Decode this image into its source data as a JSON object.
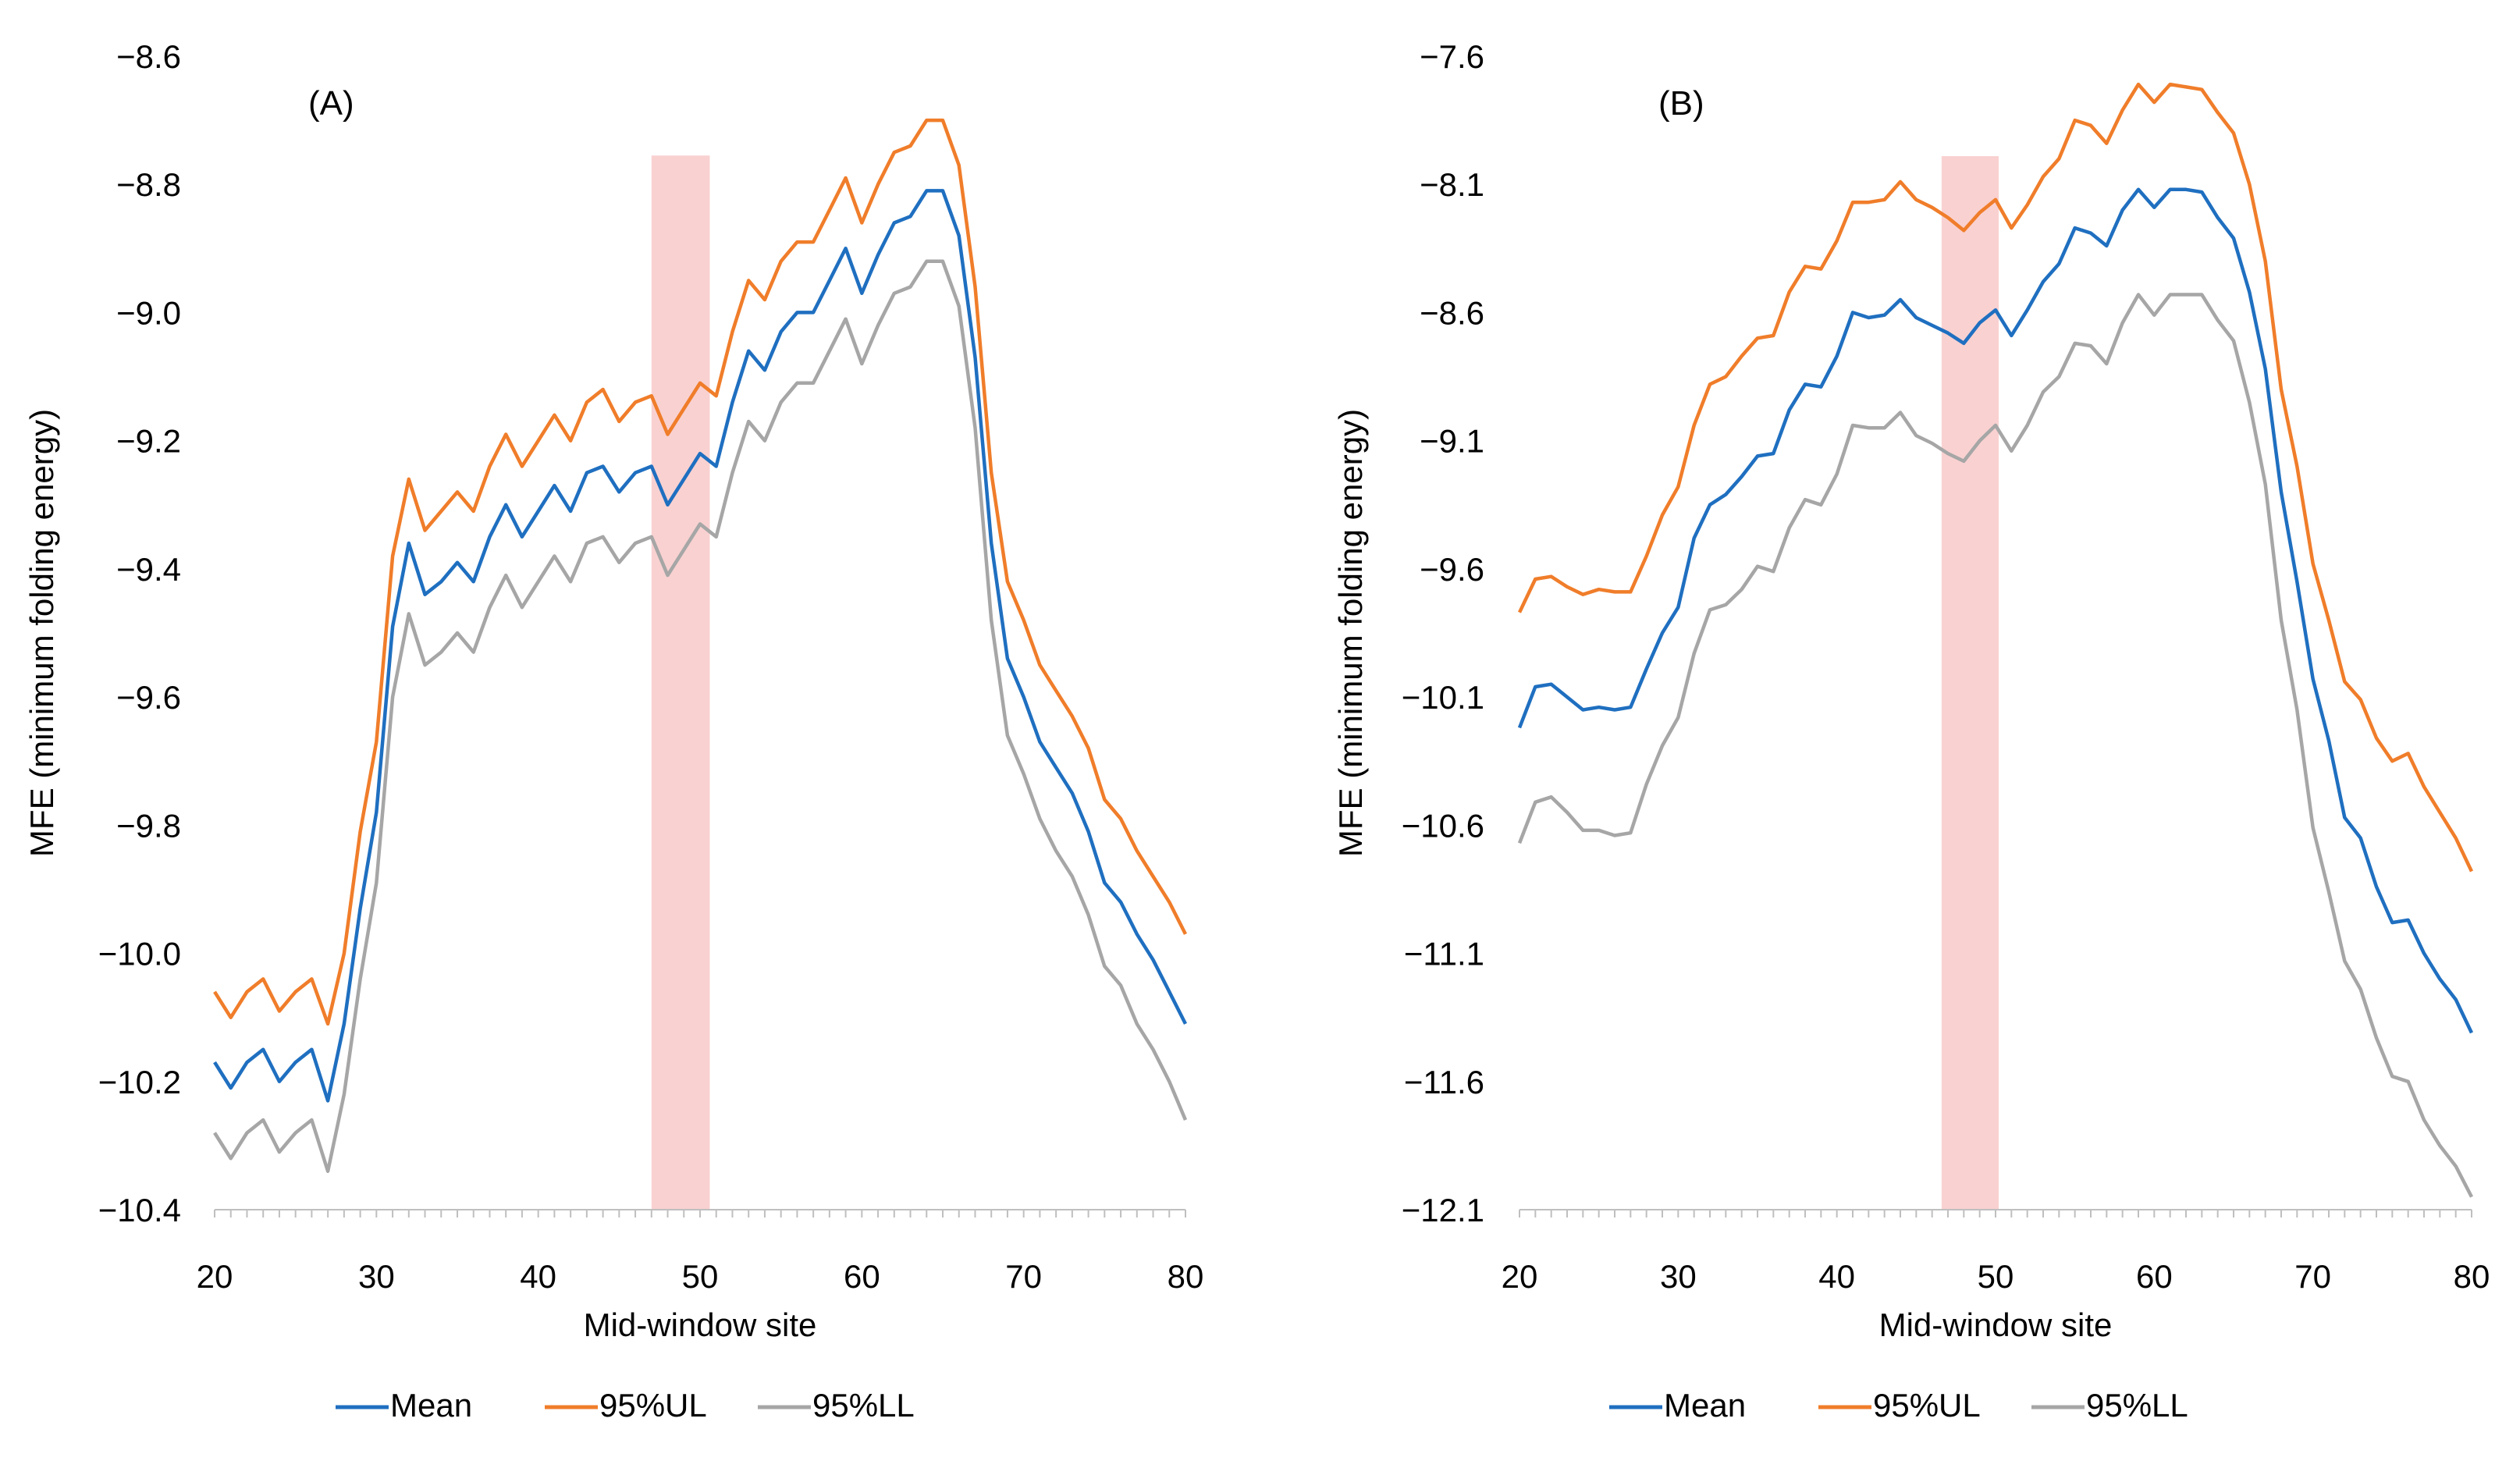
{
  "chart_data": [
    {
      "type": "line",
      "title": "(A)",
      "xlabel": "Mid-window site",
      "ylabel": "MFE (minimum folding energy)",
      "xlim": [
        20,
        80
      ],
      "ylim": [
        -10.4,
        -8.6
      ],
      "xticks": [
        "20",
        "30",
        "40",
        "50",
        "60",
        "70",
        "80"
      ],
      "yticks": [
        "−8.6",
        "−8.8",
        "−9.0",
        "−9.2",
        "−9.4",
        "−9.6",
        "−9.8",
        "−10.0",
        "−10.2",
        "−10.4"
      ],
      "highlight": {
        "x_start": 47,
        "x_end": 50.6,
        "y_top": -8.755,
        "color": "#f4a3a3"
      },
      "x": [
        20,
        21,
        22,
        23,
        24,
        25,
        26,
        27,
        28,
        29,
        30,
        31,
        32,
        33,
        34,
        35,
        36,
        37,
        38,
        39,
        40,
        41,
        42,
        43,
        44,
        45,
        46,
        47,
        48,
        49,
        50,
        51,
        52,
        53,
        54,
        55,
        56,
        57,
        58,
        59,
        60,
        61,
        62,
        63,
        64,
        65,
        66,
        67,
        68,
        69,
        70,
        71,
        72,
        73,
        74,
        75,
        76,
        77,
        78,
        79,
        80
      ],
      "series": [
        {
          "name": "Mean",
          "color": "#1f6fc0",
          "values": [
            -10.17,
            -10.21,
            -10.17,
            -10.15,
            -10.2,
            -10.17,
            -10.15,
            -10.23,
            -10.11,
            -9.93,
            -9.78,
            -9.49,
            -9.36,
            -9.44,
            -9.42,
            -9.39,
            -9.42,
            -9.35,
            -9.3,
            -9.35,
            -9.31,
            -9.27,
            -9.31,
            -9.25,
            -9.24,
            -9.28,
            -9.25,
            -9.24,
            -9.3,
            -9.26,
            -9.22,
            -9.24,
            -9.14,
            -9.06,
            -9.09,
            -9.03,
            -9.0,
            -9.0,
            -8.95,
            -8.9,
            -8.97,
            -8.91,
            -8.86,
            -8.85,
            -8.81,
            -8.81,
            -8.88,
            -9.07,
            -9.36,
            -9.54,
            -9.6,
            -9.67,
            -9.71,
            -9.75,
            -9.81,
            -9.89,
            -9.92,
            -9.97,
            -10.01,
            -10.06,
            -10.11
          ]
        },
        {
          "name": "95%UL",
          "color": "#f07d2a",
          "values": [
            -10.06,
            -10.1,
            -10.06,
            -10.04,
            -10.09,
            -10.06,
            -10.04,
            -10.11,
            -10.0,
            -9.81,
            -9.67,
            -9.38,
            -9.26,
            -9.34,
            -9.31,
            -9.28,
            -9.31,
            -9.24,
            -9.19,
            -9.24,
            -9.2,
            -9.16,
            -9.2,
            -9.14,
            -9.12,
            -9.17,
            -9.14,
            -9.13,
            -9.19,
            -9.15,
            -9.11,
            -9.13,
            -9.03,
            -8.95,
            -8.98,
            -8.92,
            -8.89,
            -8.89,
            -8.84,
            -8.79,
            -8.86,
            -8.8,
            -8.75,
            -8.74,
            -8.7,
            -8.7,
            -8.77,
            -8.96,
            -9.25,
            -9.42,
            -9.48,
            -9.55,
            -9.59,
            -9.63,
            -9.68,
            -9.76,
            -9.79,
            -9.84,
            -9.88,
            -9.92,
            -9.97
          ]
        },
        {
          "name": "95%LL",
          "color": "#a6a6a6",
          "values": [
            -10.28,
            -10.32,
            -10.28,
            -10.26,
            -10.31,
            -10.28,
            -10.26,
            -10.34,
            -10.22,
            -10.04,
            -9.89,
            -9.6,
            -9.47,
            -9.55,
            -9.53,
            -9.5,
            -9.53,
            -9.46,
            -9.41,
            -9.46,
            -9.42,
            -9.38,
            -9.42,
            -9.36,
            -9.35,
            -9.39,
            -9.36,
            -9.35,
            -9.41,
            -9.37,
            -9.33,
            -9.35,
            -9.25,
            -9.17,
            -9.2,
            -9.14,
            -9.11,
            -9.11,
            -9.06,
            -9.01,
            -9.08,
            -9.02,
            -8.97,
            -8.96,
            -8.92,
            -8.92,
            -8.99,
            -9.18,
            -9.48,
            -9.66,
            -9.72,
            -9.79,
            -9.84,
            -9.88,
            -9.94,
            -10.02,
            -10.05,
            -10.11,
            -10.15,
            -10.2,
            -10.26
          ]
        }
      ]
    },
    {
      "type": "line",
      "title": "(B)",
      "xlabel": "Mid-window site",
      "ylabel": "MFE (minimum folding energy)",
      "xlim": [
        20,
        80
      ],
      "ylim": [
        -12.1,
        -7.6
      ],
      "xticks": [
        "20",
        "30",
        "40",
        "50",
        "60",
        "70",
        "80"
      ],
      "yticks": [
        "−7.6",
        "−8.1",
        "−8.6",
        "−9.1",
        "−9.6",
        "−10.1",
        "−10.6",
        "−11.1",
        "−11.6",
        "−12.1"
      ],
      "highlight": {
        "x_start": 46.6,
        "x_end": 50.2,
        "y_top": -7.99,
        "color": "#f4a3a3"
      },
      "x": [
        20,
        21,
        22,
        23,
        24,
        25,
        26,
        27,
        28,
        29,
        30,
        31,
        32,
        33,
        34,
        35,
        36,
        37,
        38,
        39,
        40,
        41,
        42,
        43,
        44,
        45,
        46,
        47,
        48,
        49,
        50,
        51,
        52,
        53,
        54,
        55,
        56,
        57,
        58,
        59,
        60,
        61,
        62,
        63,
        64,
        65,
        66,
        67,
        68,
        69,
        70,
        71,
        72,
        73,
        74,
        75,
        76,
        77,
        78,
        79,
        80
      ],
      "series": [
        {
          "name": "Mean",
          "color": "#1f6fc0",
          "values": [
            -10.22,
            -10.06,
            -10.05,
            -10.1,
            -10.15,
            -10.14,
            -10.15,
            -10.14,
            -9.99,
            -9.85,
            -9.75,
            -9.48,
            -9.35,
            -9.31,
            -9.24,
            -9.16,
            -9.15,
            -8.98,
            -8.88,
            -8.89,
            -8.77,
            -8.6,
            -8.62,
            -8.61,
            -8.55,
            -8.62,
            -8.65,
            -8.68,
            -8.72,
            -8.64,
            -8.59,
            -8.69,
            -8.59,
            -8.48,
            -8.41,
            -8.27,
            -8.29,
            -8.34,
            -8.2,
            -8.12,
            -8.19,
            -8.12,
            -8.12,
            -8.13,
            -8.23,
            -8.31,
            -8.52,
            -8.82,
            -9.3,
            -9.65,
            -10.03,
            -10.27,
            -10.57,
            -10.65,
            -10.84,
            -10.98,
            -10.97,
            -11.1,
            -11.2,
            -11.28,
            -11.41
          ]
        },
        {
          "name": "95%UL",
          "color": "#f07d2a",
          "values": [
            -9.77,
            -9.64,
            -9.63,
            -9.67,
            -9.7,
            -9.68,
            -9.69,
            -9.69,
            -9.55,
            -9.39,
            -9.28,
            -9.04,
            -8.88,
            -8.85,
            -8.77,
            -8.7,
            -8.69,
            -8.52,
            -8.42,
            -8.43,
            -8.32,
            -8.17,
            -8.17,
            -8.16,
            -8.09,
            -8.16,
            -8.19,
            -8.23,
            -8.28,
            -8.21,
            -8.16,
            -8.27,
            -8.18,
            -8.07,
            -8.0,
            -7.85,
            -7.87,
            -7.94,
            -7.81,
            -7.71,
            -7.78,
            -7.71,
            -7.72,
            -7.73,
            -7.82,
            -7.9,
            -8.1,
            -8.4,
            -8.9,
            -9.2,
            -9.58,
            -9.8,
            -10.04,
            -10.11,
            -10.26,
            -10.35,
            -10.32,
            -10.45,
            -10.55,
            -10.65,
            -10.78
          ]
        },
        {
          "name": "95%LL",
          "color": "#a6a6a6",
          "values": [
            -10.67,
            -10.51,
            -10.49,
            -10.55,
            -10.62,
            -10.62,
            -10.64,
            -10.63,
            -10.44,
            -10.29,
            -10.18,
            -9.93,
            -9.76,
            -9.74,
            -9.68,
            -9.59,
            -9.61,
            -9.44,
            -9.33,
            -9.35,
            -9.23,
            -9.04,
            -9.05,
            -9.05,
            -8.99,
            -9.08,
            -9.11,
            -9.15,
            -9.18,
            -9.1,
            -9.04,
            -9.14,
            -9.04,
            -8.91,
            -8.85,
            -8.72,
            -8.73,
            -8.8,
            -8.64,
            -8.53,
            -8.61,
            -8.53,
            -8.53,
            -8.53,
            -8.63,
            -8.71,
            -8.95,
            -9.27,
            -9.8,
            -10.15,
            -10.61,
            -10.86,
            -11.13,
            -11.24,
            -11.43,
            -11.58,
            -11.6,
            -11.75,
            -11.85,
            -11.93,
            -12.05
          ]
        }
      ]
    }
  ]
}
